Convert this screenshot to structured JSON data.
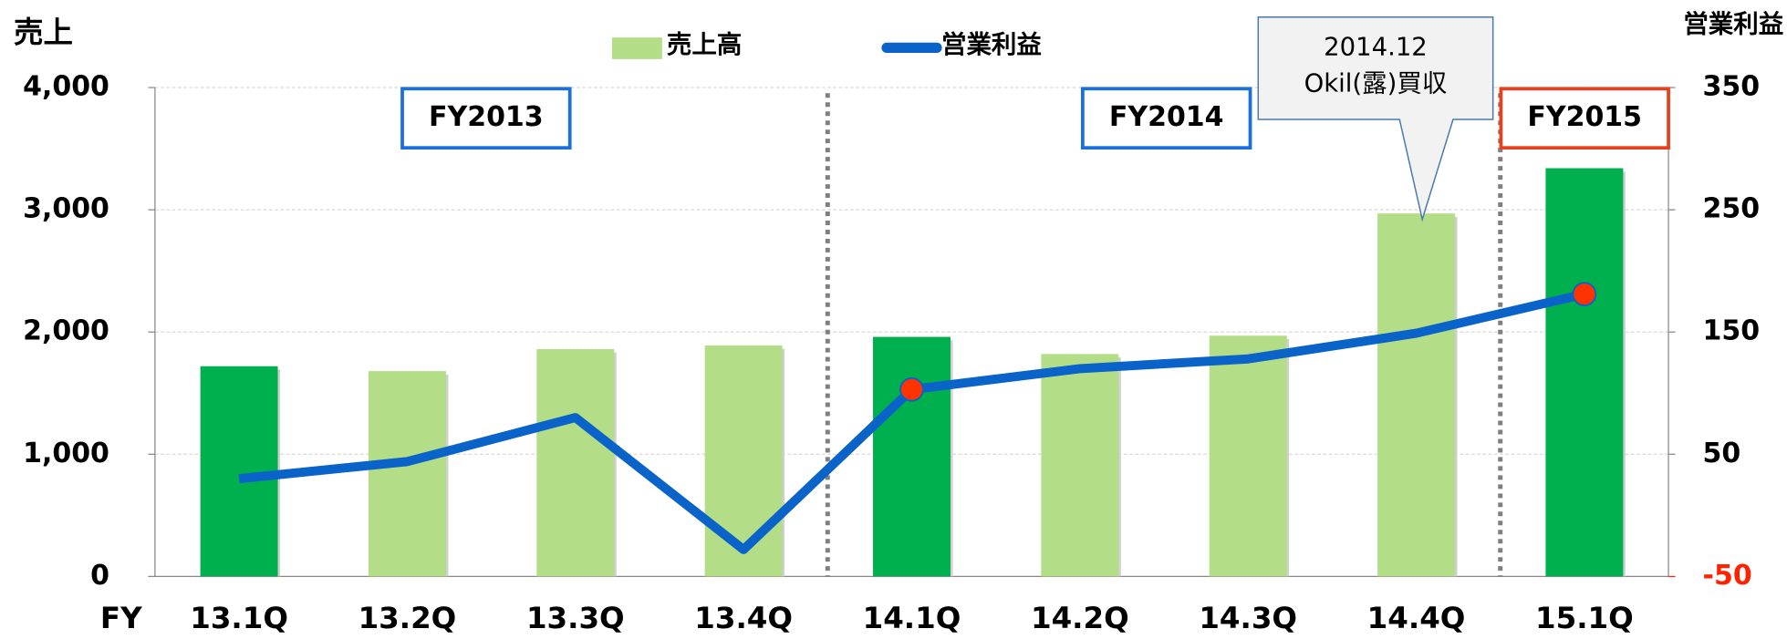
{
  "chart_data": {
    "type": "bar_line",
    "y_label": "売上",
    "y2_label": "営業利益",
    "x_label": "FY",
    "categories": [
      "13.1Q",
      "13.2Q",
      "13.3Q",
      "13.4Q",
      "14.1Q",
      "14.2Q",
      "14.3Q",
      "14.4Q",
      "15.1Q"
    ],
    "series": [
      {
        "name": "売上高",
        "type": "bar",
        "color": "#b3de87",
        "colors": [
          "#00b04f",
          "#b3de87",
          "#b3de87",
          "#b3de87",
          "#00b04f",
          "#b3de87",
          "#b3de87",
          "#b3de87",
          "#00b04f"
        ],
        "values": [
          1720,
          1680,
          1860,
          1890,
          1960,
          1820,
          1970,
          2970,
          3340
        ]
      },
      {
        "name": "営業利益",
        "type": "line",
        "axis": "y2",
        "color": "#0a63c9",
        "marker_colors": [
          null,
          null,
          null,
          null,
          "#ff3300",
          null,
          null,
          null,
          "#ff3300"
        ],
        "values": [
          30,
          44,
          80,
          -28,
          103,
          120,
          128,
          149,
          181
        ]
      }
    ],
    "ylim": [
      0,
      4000
    ],
    "yticks": [
      0,
      {
        "value": 1000,
        "label": "1,000"
      },
      {
        "value": 2000,
        "label": "2,000"
      },
      {
        "value": 3000,
        "label": "3,000"
      },
      {
        "value": 4000,
        "label": "4,000"
      }
    ],
    "y2lim": [
      -50,
      350
    ],
    "y2ticks": [
      -50,
      50,
      150,
      250,
      350
    ],
    "y2tick_colors": [
      "#ff2200",
      "#000",
      "#000",
      "#000",
      "#000"
    ],
    "grid": true,
    "annotations": [
      {
        "text": "FY2013",
        "color": "#1a6fe0"
      },
      {
        "text": "FY2014",
        "color": "#1a6fe0"
      },
      {
        "text": "FY2015",
        "color": "#e8401c"
      }
    ],
    "callout": {
      "lines": [
        "2014.12",
        "Okil(露)買収"
      ]
    }
  }
}
